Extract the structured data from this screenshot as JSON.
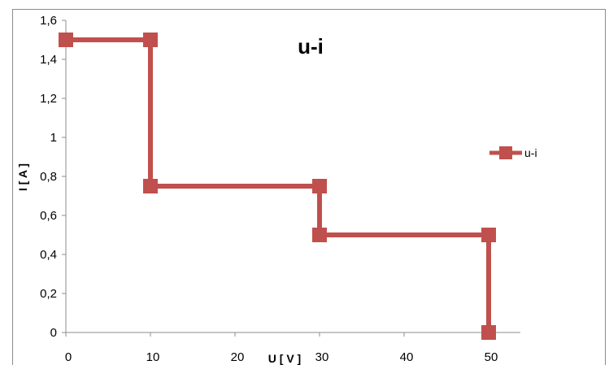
{
  "chart_data": {
    "type": "line",
    "title": "u-i",
    "xlabel": "U [ V ]",
    "ylabel": "I [ A ]",
    "xlim": [
      0,
      50
    ],
    "ylim": [
      0,
      1.6
    ],
    "x_ticks": [
      "0",
      "10",
      "20",
      "30",
      "40",
      "50"
    ],
    "x_tick_values": [
      0,
      10,
      20,
      30,
      40,
      50
    ],
    "y_ticks": [
      "0",
      "0,2",
      "0,4",
      "0,6",
      "0,8",
      "1",
      "1,2",
      "1,4",
      "1,6"
    ],
    "y_tick_values": [
      0,
      0.2,
      0.4,
      0.6,
      0.8,
      1.0,
      1.2,
      1.4,
      1.6
    ],
    "grid": false,
    "legend_position": "right",
    "series": [
      {
        "name": "u-i",
        "color": "#c0504d",
        "marker": "square",
        "x": [
          0,
          10,
          10,
          30,
          30,
          50,
          50
        ],
        "y": [
          1.5,
          1.5,
          0.75,
          0.75,
          0.5,
          0.5,
          0
        ]
      }
    ]
  }
}
